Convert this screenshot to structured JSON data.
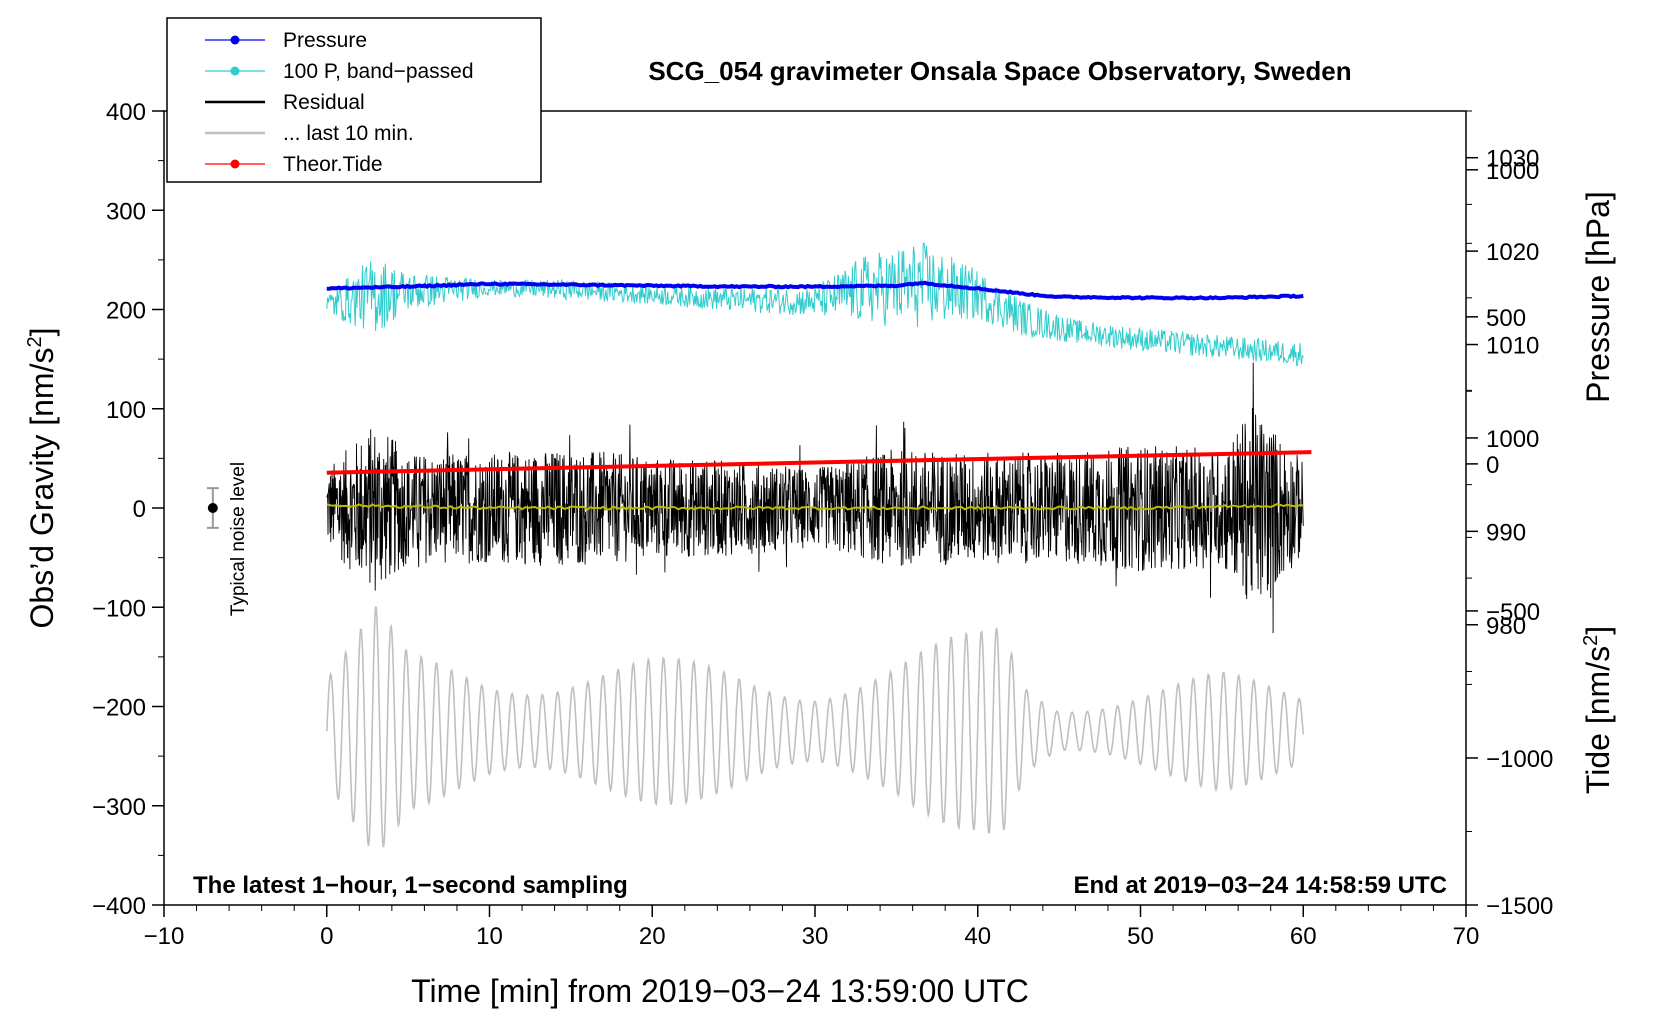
{
  "chart_data": {
    "type": "line",
    "title": "SCG_054 gravimeter Onsala Space Observatory, Sweden",
    "xlabel": "Time [min] from 2019−03−24 13:59:00 UTC",
    "ylabel": "Obs’d Gravity [nm/s",
    "ylabel_sup": "2",
    "ylabel_end": "]",
    "right_labels": {
      "pressure": "Pressure [hPa]",
      "tide": "Tide [nm/s",
      "tide_sup": "2",
      "tide_end": "]"
    },
    "xlim": [
      -10,
      70
    ],
    "ylim": [
      -400,
      400
    ],
    "x_ticks": [
      {
        "value": -10,
        "label": "−10"
      },
      {
        "value": 0,
        "label": "0"
      },
      {
        "value": 10,
        "label": "10"
      },
      {
        "value": 20,
        "label": "20"
      },
      {
        "value": 30,
        "label": "30"
      },
      {
        "value": 40,
        "label": "40"
      },
      {
        "value": 50,
        "label": "50"
      },
      {
        "value": 60,
        "label": "60"
      },
      {
        "value": 70,
        "label": "70"
      }
    ],
    "y_ticks": [
      {
        "value": 400,
        "label": "400"
      },
      {
        "value": 300,
        "label": "300"
      },
      {
        "value": 200,
        "label": "200"
      },
      {
        "value": 100,
        "label": "100"
      },
      {
        "value": 0,
        "label": "0"
      },
      {
        "value": -100,
        "label": "−100"
      },
      {
        "value": -200,
        "label": "−200"
      },
      {
        "value": -300,
        "label": "−300"
      },
      {
        "value": -400,
        "label": "−400"
      }
    ],
    "pressure_axis": {
      "range_hpa": [
        950,
        1035
      ],
      "ticks": [
        {
          "value": 1030,
          "label": "1030"
        },
        {
          "value": 1020,
          "label": "1020"
        },
        {
          "value": 1010,
          "label": "1010"
        },
        {
          "value": 1000,
          "label": "1000"
        },
        {
          "value": 990,
          "label": "990"
        },
        {
          "value": 980,
          "label": "980"
        }
      ]
    },
    "tide_axis": {
      "range": [
        -1500,
        1200
      ],
      "ticks": [
        {
          "value": 1000,
          "label": "1000"
        },
        {
          "value": 500,
          "label": "500"
        },
        {
          "value": 0,
          "label": "0"
        },
        {
          "value": -500,
          "label": "−500"
        },
        {
          "value": -1000,
          "label": "−1000"
        },
        {
          "value": -1500,
          "label": "−1500"
        }
      ]
    },
    "series": [
      {
        "name": "Pressure",
        "color": "#0000ee",
        "x": [
          0,
          5,
          10,
          15,
          20,
          25,
          30,
          35,
          36.5,
          40,
          43,
          45,
          50,
          55,
          60
        ],
        "y_hpa": [
          1016.0,
          1016.2,
          1016.5,
          1016.4,
          1016.3,
          1016.2,
          1016.2,
          1016.3,
          1016.6,
          1016.0,
          1015.4,
          1015.1,
          1015.0,
          1015.0,
          1015.2
        ]
      },
      {
        "name": "100 P, band−passed",
        "color": "#33cccc",
        "x": [
          0,
          3,
          5,
          10,
          15,
          20,
          25,
          30,
          33,
          36.5,
          40,
          43,
          46,
          50,
          55,
          60
        ],
        "center": [
          205,
          215,
          218,
          222,
          220,
          215,
          210,
          208,
          220,
          225,
          215,
          190,
          178,
          170,
          162,
          155
        ],
        "amplitude": [
          12,
          40,
          20,
          8,
          10,
          10,
          12,
          15,
          35,
          45,
          25,
          18,
          12,
          12,
          12,
          12
        ]
      },
      {
        "name": "Residual",
        "color": "#000000",
        "x": [
          0,
          3,
          5,
          10,
          15,
          20,
          25,
          30,
          35,
          40,
          45,
          50,
          55,
          57,
          60
        ],
        "amplitude": [
          50,
          110,
          70,
          70,
          75,
          65,
          60,
          50,
          75,
          70,
          70,
          80,
          75,
          130,
          60
        ]
      },
      {
        "name": "Smoothed residual",
        "color": "#bbbb00",
        "x": [
          0,
          10,
          20,
          30,
          40,
          50,
          60
        ],
        "y": [
          3,
          0,
          0,
          0,
          0,
          0,
          3
        ]
      },
      {
        "name": "... last 10 min.",
        "color": "#c0c0c0",
        "x": [
          0,
          3,
          5,
          10,
          15,
          20,
          25,
          30,
          35,
          40,
          41.5,
          43,
          45,
          50,
          55,
          60
        ],
        "amplitude": [
          70,
          130,
          80,
          70,
          75,
          75,
          70,
          60,
          75,
          105,
          125,
          60,
          35,
          50,
          60,
          45
        ]
      },
      {
        "name": "Theor.Tide",
        "color": "#ff0000",
        "x": [
          0,
          60.5
        ],
        "y_tide": [
          -30,
          40
        ]
      }
    ],
    "legend": [
      {
        "label": "Pressure",
        "color": "#0000ee",
        "marker": true,
        "thick": false
      },
      {
        "label": "100 P, band−passed",
        "color": "#33cccc",
        "marker": true,
        "thick": false
      },
      {
        "label": "Residual",
        "color": "#000000",
        "marker": false,
        "thick": true
      },
      {
        "label": "... last 10 min.",
        "color": "#c0c0c0",
        "marker": false,
        "thick": true
      },
      {
        "label": "Theor.Tide",
        "color": "#ff0000",
        "marker": true,
        "thick": false
      }
    ],
    "noise_level": {
      "label": "Typical noise level",
      "x": -7,
      "y": 0,
      "error": 20
    },
    "annotations": {
      "left": "The latest 1−hour, 1−second sampling",
      "right": "End at 2019−03−24 14:58:59 UTC"
    }
  }
}
